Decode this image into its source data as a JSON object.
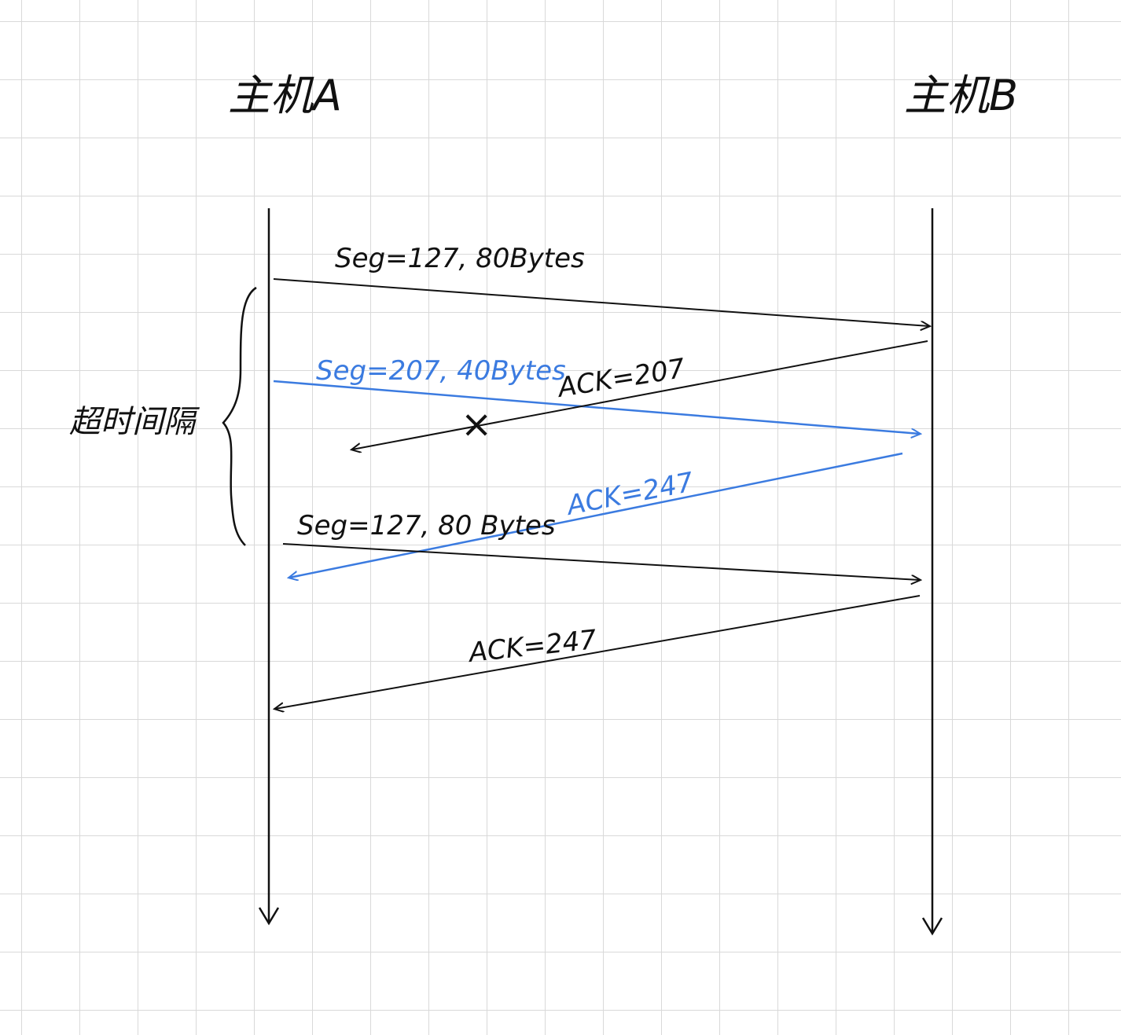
{
  "colors": {
    "ink": "#111111",
    "blue": "#3b7be0",
    "grid": "#d9d9d9"
  },
  "hosts": {
    "a": "主机A",
    "b": "主机B"
  },
  "timeout_label": "超时间隔",
  "messages": {
    "seg1": "Seg=127, 80Bytes",
    "seg2": "Seg=207, 40Bytes",
    "ack1": "ACK=207",
    "ack2": "ACK=247",
    "seg1_retx": "Seg=127, 80 Bytes",
    "ack3": "ACK=247"
  },
  "lost_mark": "×"
}
